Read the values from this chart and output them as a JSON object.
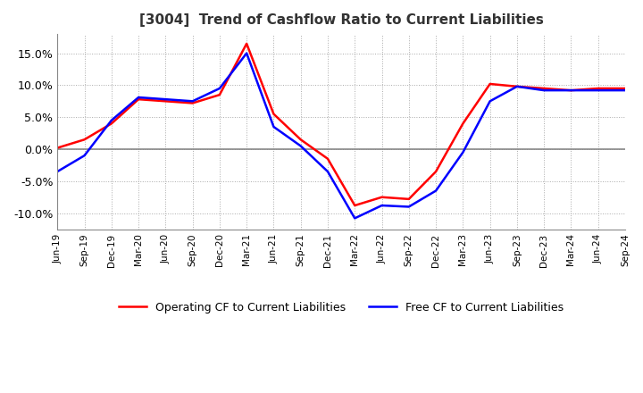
{
  "title": "[3004]  Trend of Cashflow Ratio to Current Liabilities",
  "title_fontsize": 11,
  "x_labels": [
    "Jun-19",
    "Sep-19",
    "Dec-19",
    "Mar-20",
    "Jun-20",
    "Sep-20",
    "Dec-20",
    "Mar-21",
    "Jun-21",
    "Sep-21",
    "Dec-21",
    "Mar-22",
    "Jun-22",
    "Sep-22",
    "Dec-22",
    "Mar-23",
    "Jun-23",
    "Sep-23",
    "Dec-23",
    "Mar-24",
    "Jun-24",
    "Sep-24"
  ],
  "operating_cf": [
    0.2,
    1.5,
    4.0,
    7.8,
    7.5,
    7.2,
    8.5,
    16.5,
    5.5,
    1.5,
    -1.5,
    -8.8,
    -7.5,
    -7.8,
    -3.5,
    4.0,
    10.2,
    9.8,
    9.5,
    9.2,
    9.5,
    9.5
  ],
  "free_cf": [
    -3.5,
    -1.0,
    4.5,
    8.1,
    7.8,
    7.5,
    9.5,
    15.0,
    3.5,
    0.5,
    -3.5,
    -10.8,
    -8.8,
    -9.0,
    -6.5,
    -0.5,
    7.5,
    9.8,
    9.2,
    9.2,
    9.2,
    9.2
  ],
  "ylim": [
    -12.5,
    18.0
  ],
  "yticks": [
    -10.0,
    -5.0,
    0.0,
    5.0,
    10.0,
    15.0
  ],
  "operating_color": "#ff0000",
  "free_color": "#0000ff",
  "operating_label": "Operating CF to Current Liabilities",
  "free_label": "Free CF to Current Liabilities",
  "grid_color": "#aaaaaa",
  "background_color": "#ffffff",
  "line_width": 1.8
}
